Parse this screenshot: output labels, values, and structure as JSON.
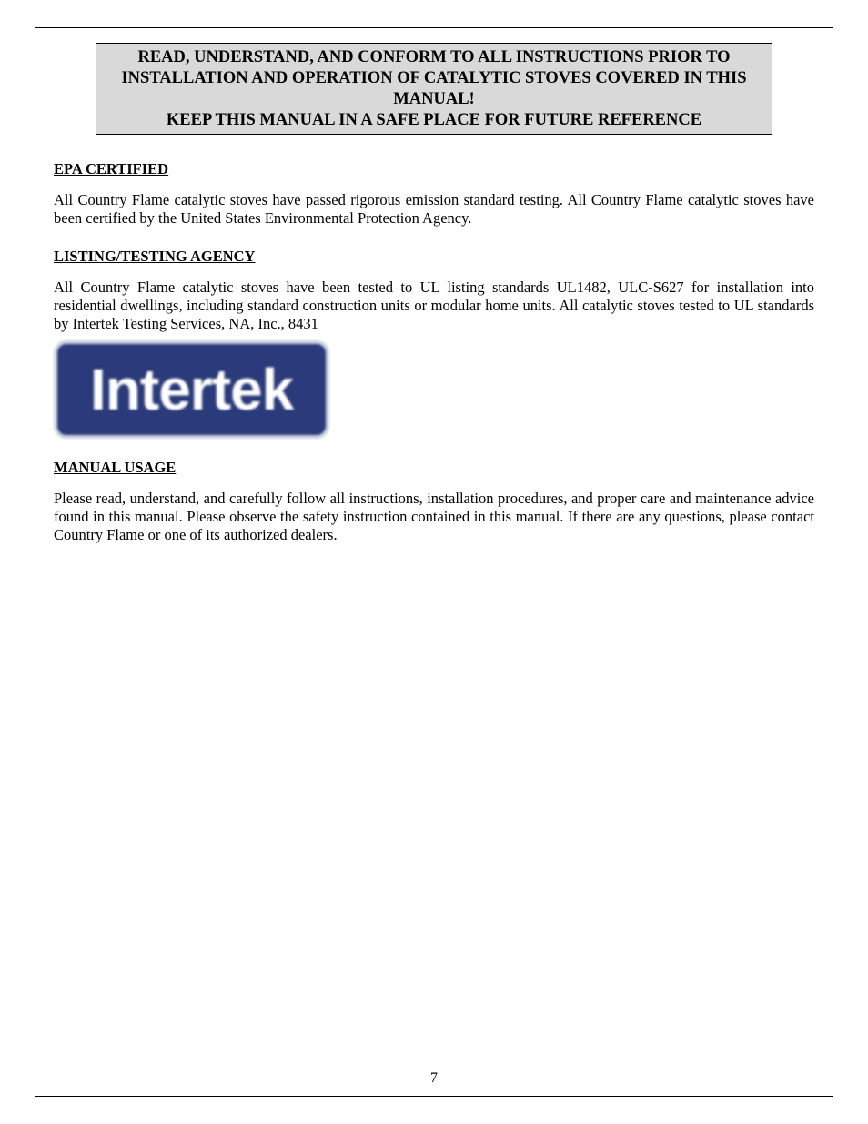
{
  "warning": {
    "line1": "READ, UNDERSTAND, AND CONFORM TO ALL INSTRUCTIONS PRIOR TO",
    "line2": "INSTALLATION AND OPERATION OF CATALYTIC STOVES COVERED IN THIS",
    "line3": "MANUAL!",
    "line4": "KEEP THIS MANUAL IN A SAFE PLACE FOR FUTURE REFERENCE"
  },
  "sections": {
    "epa": {
      "heading": "EPA CERTIFIED",
      "body": "All Country Flame catalytic stoves have passed rigorous emission standard testing.  All Country Flame catalytic stoves have been certified by the United States Environmental Protection Agency."
    },
    "listing": {
      "heading": "LISTING/TESTING AGENCY",
      "body": "All Country Flame catalytic stoves have been tested to UL listing standards UL1482, ULC-S627 for installation into residential dwellings, including standard construction units or modular home units.  All catalytic stoves tested to UL standards by Intertek Testing Services, NA, Inc., 8431"
    },
    "manual": {
      "heading": "MANUAL USAGE",
      "body": "Please read, understand, and carefully follow all instructions, installation procedures, and proper care and maintenance advice found in this manual.  Please observe the safety instruction contained in this manual. If there are any questions, please contact Country Flame or one of its authorized dealers."
    }
  },
  "logo": {
    "text": "Intertek",
    "background_color": "#2a3a7a",
    "text_color": "#ffffff"
  },
  "page_number": "7",
  "styling": {
    "page_bg": "#ffffff",
    "warning_bg": "#d9d9d9",
    "border_color": "#000000",
    "heading_fontsize": 16.5,
    "body_fontsize": 16.5,
    "warning_fontsize": 18.5,
    "font_family": "Times New Roman"
  }
}
